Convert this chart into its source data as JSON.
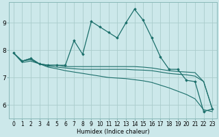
{
  "xlabel": "Humidex (Indice chaleur)",
  "bg_color": "#cce8ea",
  "grid_color": "#aacccc",
  "line_color": "#1a6e6a",
  "xlim": [
    -0.5,
    23.5
  ],
  "ylim": [
    5.5,
    9.75
  ],
  "yticks": [
    6,
    7,
    8,
    9
  ],
  "xticks": [
    0,
    1,
    2,
    3,
    4,
    5,
    6,
    7,
    8,
    9,
    10,
    11,
    12,
    13,
    14,
    15,
    16,
    17,
    18,
    19,
    20,
    21,
    22,
    23
  ],
  "series": [
    [
      7.9,
      7.6,
      7.7,
      7.5,
      7.45,
      7.45,
      7.45,
      8.35,
      7.85,
      9.05,
      8.85,
      8.65,
      8.45,
      9.0,
      9.5,
      9.1,
      8.45,
      7.75,
      7.3,
      7.3,
      6.9,
      6.85,
      5.75,
      5.85
    ],
    [
      7.9,
      7.6,
      7.7,
      7.5,
      7.45,
      7.45,
      7.4,
      7.4,
      7.4,
      7.4,
      7.4,
      7.4,
      7.4,
      7.4,
      7.4,
      7.38,
      7.35,
      7.3,
      7.25,
      7.22,
      7.2,
      7.18,
      6.85,
      5.85
    ],
    [
      7.9,
      7.6,
      7.65,
      7.5,
      7.42,
      7.38,
      7.35,
      7.32,
      7.3,
      7.3,
      7.3,
      7.3,
      7.3,
      7.3,
      7.28,
      7.27,
      7.25,
      7.2,
      7.15,
      7.12,
      7.1,
      7.05,
      6.85,
      5.85
    ],
    [
      7.9,
      7.55,
      7.6,
      7.5,
      7.38,
      7.32,
      7.25,
      7.2,
      7.15,
      7.1,
      7.05,
      7.0,
      6.98,
      6.96,
      6.92,
      6.88,
      6.82,
      6.72,
      6.62,
      6.5,
      6.38,
      6.22,
      5.82,
      5.75
    ]
  ]
}
